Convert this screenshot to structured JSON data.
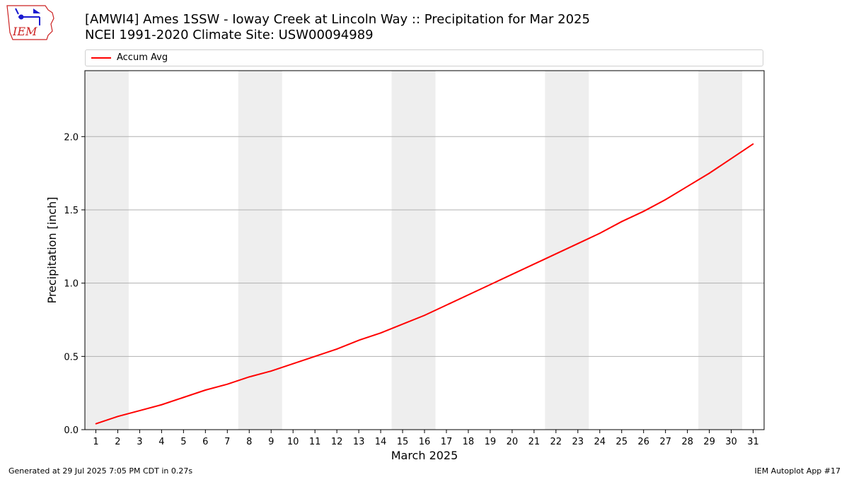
{
  "logo": {
    "text": "IEM"
  },
  "header": {
    "title": "[AMWI4] Ames 1SSW - Ioway Creek at Lincoln Way :: Precipitation for Mar 2025",
    "subtitle": "NCEI 1991-2020 Climate Site: USW00094989"
  },
  "footer": {
    "left": "Generated at 29 Jul 2025 7:05 PM CDT in 0.27s",
    "right": "IEM Autoplot App #17"
  },
  "colors": {
    "line": "#ff0000",
    "weekend": "#eeeeee",
    "grid": "#b0b0b0"
  },
  "chart_data": {
    "type": "line",
    "xlabel": "March 2025",
    "ylabel": "Precipitation [inch]",
    "xlim": [
      0.5,
      31.5
    ],
    "ylim": [
      0,
      2.45
    ],
    "yticks": [
      0.0,
      0.5,
      1.0,
      1.5,
      2.0
    ],
    "ytick_labels": [
      "0.0",
      "0.5",
      "1.0",
      "1.5",
      "2.0"
    ],
    "grid": "y",
    "legend": "top",
    "shaded_spans": [
      [
        0.5,
        2.5
      ],
      [
        7.5,
        9.5
      ],
      [
        14.5,
        16.5
      ],
      [
        21.5,
        23.5
      ],
      [
        28.5,
        30.5
      ]
    ],
    "x": [
      1,
      2,
      3,
      4,
      5,
      6,
      7,
      8,
      9,
      10,
      11,
      12,
      13,
      14,
      15,
      16,
      17,
      18,
      19,
      20,
      21,
      22,
      23,
      24,
      25,
      26,
      27,
      28,
      29,
      30,
      31
    ],
    "series": [
      {
        "name": "Accum Avg",
        "color": "#ff0000",
        "values": [
          0.04,
          0.09,
          0.13,
          0.17,
          0.22,
          0.27,
          0.31,
          0.36,
          0.4,
          0.45,
          0.5,
          0.55,
          0.61,
          0.66,
          0.72,
          0.78,
          0.85,
          0.92,
          0.99,
          1.06,
          1.13,
          1.2,
          1.27,
          1.34,
          1.42,
          1.49,
          1.57,
          1.66,
          1.75,
          1.85,
          1.95
        ]
      }
    ]
  }
}
